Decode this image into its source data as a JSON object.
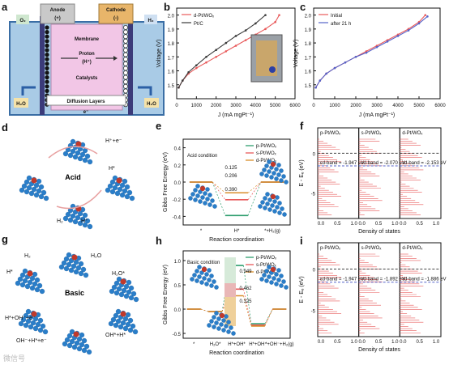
{
  "panels": {
    "a": {
      "letter": "a",
      "o2": "O₂",
      "h2": "H₂",
      "anode": "Anode",
      "anode_sign": "(+)",
      "cathode": "Cathode",
      "cathode_sign": "(-)",
      "membrane": "Membrane",
      "proton": "Proton",
      "proton_sub": "(H⁺)",
      "catalysts": "Catalysts",
      "diffusion": "Diffusion Layers",
      "electron": "e⁻",
      "h2o_left": "H₂O",
      "h2o_right": "H₂O"
    },
    "d": {
      "letter": "d",
      "center": "Acid",
      "s1": "H⁺+e⁻",
      "s2": "H*",
      "s3": "H₂",
      "s4": "H⁺"
    },
    "g": {
      "letter": "g",
      "center": "Basic",
      "s1": "H₂",
      "s2": "H₂O",
      "s3": "H₂O*",
      "s4": "H*",
      "s5": "H*+OH⁻+e⁻",
      "s6": "OH⁻+H*+e⁻",
      "s7": "OH*+H*"
    },
    "e": {
      "letter": "e",
      "condition": "Acid condition",
      "vals": [
        "0.125",
        "0.206",
        "0.390"
      ],
      "labels_surf": [
        "p-Pt/WOₓ",
        "d-Pt/WOₓ",
        "s-Pt/WOₓ"
      ]
    },
    "h": {
      "letter": "h",
      "condition": "Basic condition",
      "vals": [
        "0.949",
        "0.462",
        "0.325"
      ],
      "labels_surf": [
        "p-Pt/WOₓ",
        "s-Pt/WOₓ",
        "d-Pt/WOₓ"
      ]
    },
    "f": {
      "letter": "f",
      "titles": [
        "p-Pt/WOₓ",
        "s-Pt/WOₓ",
        "d-Pt/WOₓ"
      ],
      "dband": [
        "εd-band = -1.947 eV",
        "εd-band = -2.070 eV",
        "εd-band = -2.153 eV"
      ]
    },
    "i": {
      "letter": "i",
      "titles": [
        "p-Pt/WOₓ",
        "s-Pt/WOₓ",
        "d-Pt/WOₓ"
      ],
      "dband": [
        "εd-band = -1.947 eV",
        "εd-band = -1.892 eV",
        "εd-band = -1.886 eV"
      ]
    },
    "b": {
      "letter": "b"
    },
    "c": {
      "letter": "c"
    }
  },
  "colors": {
    "red": "#e8595a",
    "dark": "#3a3a3a",
    "blue": "#5563c9",
    "green": "#2e9e6e",
    "orange": "#d98e2b",
    "pink": "#f2c6e6"
  },
  "watermark": "微信号",
  "chart_data": [
    {
      "panel": "b",
      "type": "line",
      "xlabel": "J (mA mgPt⁻¹)",
      "ylabel": "Voltage (V)",
      "xlim": [
        0,
        6000
      ],
      "ylim": [
        1.4,
        2.05
      ],
      "xticks": [
        "0",
        "1000",
        "2000",
        "3000",
        "4000",
        "5000",
        "6000"
      ],
      "yticks": [
        "1.5",
        "1.6",
        "1.7",
        "1.8",
        "1.9",
        "2.0"
      ],
      "legend": "top-left",
      "series": [
        {
          "name": "d-Pt/WOₓ",
          "color": "#e8595a",
          "x": [
            100,
            300,
            600,
            1000,
            1500,
            2000,
            2500,
            3000,
            3500,
            4000,
            4500,
            5000,
            5200
          ],
          "y": [
            1.48,
            1.53,
            1.58,
            1.62,
            1.66,
            1.7,
            1.74,
            1.78,
            1.82,
            1.86,
            1.9,
            1.95,
            2.0
          ]
        },
        {
          "name": "Pt/C",
          "color": "#3a3a3a",
          "x": [
            100,
            300,
            600,
            1000,
            1500,
            2000,
            2500,
            3000,
            3500,
            4000,
            4500
          ],
          "y": [
            1.48,
            1.53,
            1.59,
            1.64,
            1.7,
            1.75,
            1.8,
            1.85,
            1.89,
            1.94,
            2.0
          ]
        }
      ]
    },
    {
      "panel": "c",
      "type": "line",
      "xlabel": "J (mA mgPt⁻¹)",
      "ylabel": "Voltage (V)",
      "xlim": [
        0,
        6000
      ],
      "ylim": [
        1.4,
        2.05
      ],
      "xticks": [
        "0",
        "1000",
        "2000",
        "3000",
        "4000",
        "5000",
        "6000"
      ],
      "yticks": [
        "1.5",
        "1.6",
        "1.7",
        "1.8",
        "1.9",
        "2.0"
      ],
      "legend": "top-left",
      "series": [
        {
          "name": "Initial",
          "color": "#e8595a",
          "x": [
            100,
            300,
            600,
            1000,
            1500,
            2000,
            2500,
            3000,
            3500,
            4000,
            4500,
            5000,
            5300
          ],
          "y": [
            1.48,
            1.53,
            1.58,
            1.62,
            1.66,
            1.7,
            1.74,
            1.78,
            1.82,
            1.86,
            1.9,
            1.95,
            2.0
          ]
        },
        {
          "name": "after 21 h",
          "color": "#5563c9",
          "x": [
            100,
            300,
            600,
            1000,
            1500,
            2000,
            2500,
            3000,
            3500,
            4000,
            4500,
            5000,
            5400
          ],
          "y": [
            1.48,
            1.53,
            1.58,
            1.62,
            1.66,
            1.7,
            1.73,
            1.77,
            1.81,
            1.85,
            1.89,
            1.94,
            1.99
          ]
        }
      ]
    },
    {
      "panel": "e",
      "type": "line",
      "xlabel": "Reaction coordination",
      "ylabel": "Gibbs Free Energy (eV)",
      "ylim": [
        -0.5,
        0.5
      ],
      "yticks": [
        "0.4",
        "0.2",
        "0.0",
        "-0.2",
        "-0.4"
      ],
      "categories": [
        "*",
        "H*",
        "*+H₂(g)"
      ],
      "series": [
        {
          "name": "p-Pt/WOₓ",
          "color": "#2e9e6e",
          "values": [
            0,
            -0.39,
            0
          ]
        },
        {
          "name": "s-Pt/WOₓ",
          "color": "#e8595a",
          "values": [
            0,
            -0.206,
            0
          ]
        },
        {
          "name": "d-Pt/WOₓ",
          "color": "#d98e2b",
          "values": [
            0,
            -0.125,
            0
          ]
        }
      ]
    },
    {
      "panel": "h",
      "type": "line",
      "xlabel": "Reaction coordination",
      "ylabel": "Gibbs Free Energy (eV)",
      "ylim": [
        -0.6,
        1.2
      ],
      "yticks": [
        "1.0",
        "0.5",
        "0.0",
        "-0.5"
      ],
      "categories": [
        "*",
        "H₂O*",
        "H*+OH*",
        "H*+OH⁻",
        "*+OH⁻+H₂(g)"
      ],
      "series": [
        {
          "name": "p-Pt/WOₓ",
          "color": "#2e9e6e",
          "values": [
            0,
            -0.05,
            0.899,
            -0.3,
            0
          ]
        },
        {
          "name": "s-Pt/WOₓ",
          "color": "#e8595a",
          "values": [
            0,
            -0.05,
            0.412,
            -0.33,
            0
          ]
        },
        {
          "name": "d-Pt/WOₓ",
          "color": "#d98e2b",
          "values": [
            0,
            -0.05,
            0.275,
            -0.35,
            0
          ]
        }
      ]
    }
  ],
  "dos_axes": {
    "f_ylabel": "E - Eₑ (eV)",
    "i_ylabel": "E - Eₑ (eV)",
    "xlabel": "Density of states",
    "yticks": [
      "0",
      "-5"
    ],
    "xticks": [
      "0.0",
      "0.5",
      "1.0"
    ]
  }
}
